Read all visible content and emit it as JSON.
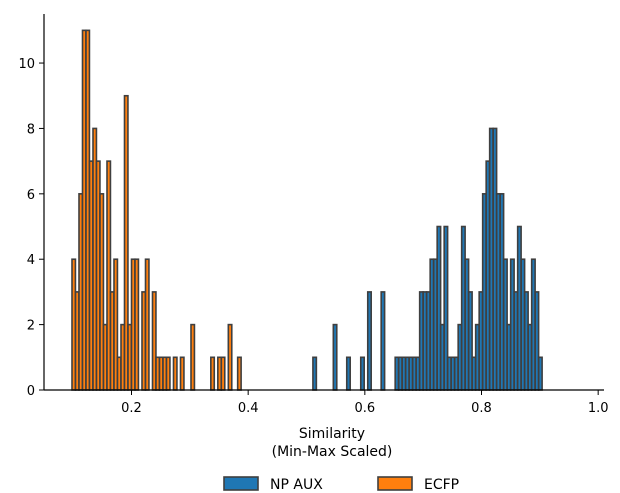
{
  "chart_data": {
    "type": "bar",
    "subtype": "histogram",
    "xlabel_line1": "Similarity",
    "xlabel_line2": "(Min-Max Scaled)",
    "ylabel": "",
    "xlim": [
      0.05,
      1.01
    ],
    "ylim": [
      0,
      11.5
    ],
    "x_ticks": [
      "0.2",
      "0.4",
      "0.6",
      "0.8",
      "1.0"
    ],
    "y_ticks": [
      "0",
      "2",
      "4",
      "6",
      "8",
      "10"
    ],
    "bin_width": 0.0059,
    "grid": false,
    "legend_position": "bottom-center",
    "series": [
      {
        "name": "NP AUX",
        "color": "#1f77b4",
        "bins": [
          [
            0.511,
            1
          ],
          [
            0.546,
            2
          ],
          [
            0.569,
            1
          ],
          [
            0.593,
            1
          ],
          [
            0.605,
            3
          ],
          [
            0.628,
            3
          ],
          [
            0.652,
            1
          ],
          [
            0.658,
            1
          ],
          [
            0.664,
            1
          ],
          [
            0.67,
            1
          ],
          [
            0.676,
            1
          ],
          [
            0.682,
            1
          ],
          [
            0.688,
            1
          ],
          [
            0.694,
            3
          ],
          [
            0.7,
            3
          ],
          [
            0.706,
            3
          ],
          [
            0.712,
            4
          ],
          [
            0.718,
            4
          ],
          [
            0.724,
            5
          ],
          [
            0.73,
            2
          ],
          [
            0.736,
            5
          ],
          [
            0.742,
            1
          ],
          [
            0.748,
            1
          ],
          [
            0.754,
            1
          ],
          [
            0.76,
            2
          ],
          [
            0.766,
            5
          ],
          [
            0.772,
            4
          ],
          [
            0.778,
            3
          ],
          [
            0.784,
            1
          ],
          [
            0.79,
            2
          ],
          [
            0.796,
            3
          ],
          [
            0.802,
            6
          ],
          [
            0.808,
            7
          ],
          [
            0.814,
            8
          ],
          [
            0.82,
            8
          ],
          [
            0.826,
            6
          ],
          [
            0.832,
            6
          ],
          [
            0.838,
            4
          ],
          [
            0.844,
            2
          ],
          [
            0.85,
            4
          ],
          [
            0.856,
            3
          ],
          [
            0.862,
            5
          ],
          [
            0.868,
            4
          ],
          [
            0.874,
            3
          ],
          [
            0.88,
            2
          ],
          [
            0.886,
            4
          ],
          [
            0.892,
            3
          ],
          [
            0.898,
            1
          ]
        ]
      },
      {
        "name": "ECFP",
        "color": "#ff7f0e",
        "bins": [
          [
            0.098,
            4
          ],
          [
            0.104,
            3
          ],
          [
            0.11,
            6
          ],
          [
            0.116,
            11
          ],
          [
            0.122,
            11
          ],
          [
            0.128,
            7
          ],
          [
            0.134,
            8
          ],
          [
            0.14,
            7
          ],
          [
            0.146,
            6
          ],
          [
            0.152,
            2
          ],
          [
            0.158,
            7
          ],
          [
            0.164,
            3
          ],
          [
            0.17,
            4
          ],
          [
            0.176,
            1
          ],
          [
            0.182,
            2
          ],
          [
            0.188,
            9
          ],
          [
            0.194,
            2
          ],
          [
            0.2,
            4
          ],
          [
            0.206,
            4
          ],
          [
            0.218,
            3
          ],
          [
            0.224,
            4
          ],
          [
            0.236,
            3
          ],
          [
            0.242,
            1
          ],
          [
            0.248,
            1
          ],
          [
            0.254,
            1
          ],
          [
            0.26,
            1
          ],
          [
            0.272,
            1
          ],
          [
            0.284,
            1
          ],
          [
            0.302,
            2
          ],
          [
            0.336,
            1
          ],
          [
            0.348,
            1
          ],
          [
            0.354,
            1
          ],
          [
            0.366,
            2
          ],
          [
            0.382,
            1
          ]
        ]
      }
    ]
  }
}
